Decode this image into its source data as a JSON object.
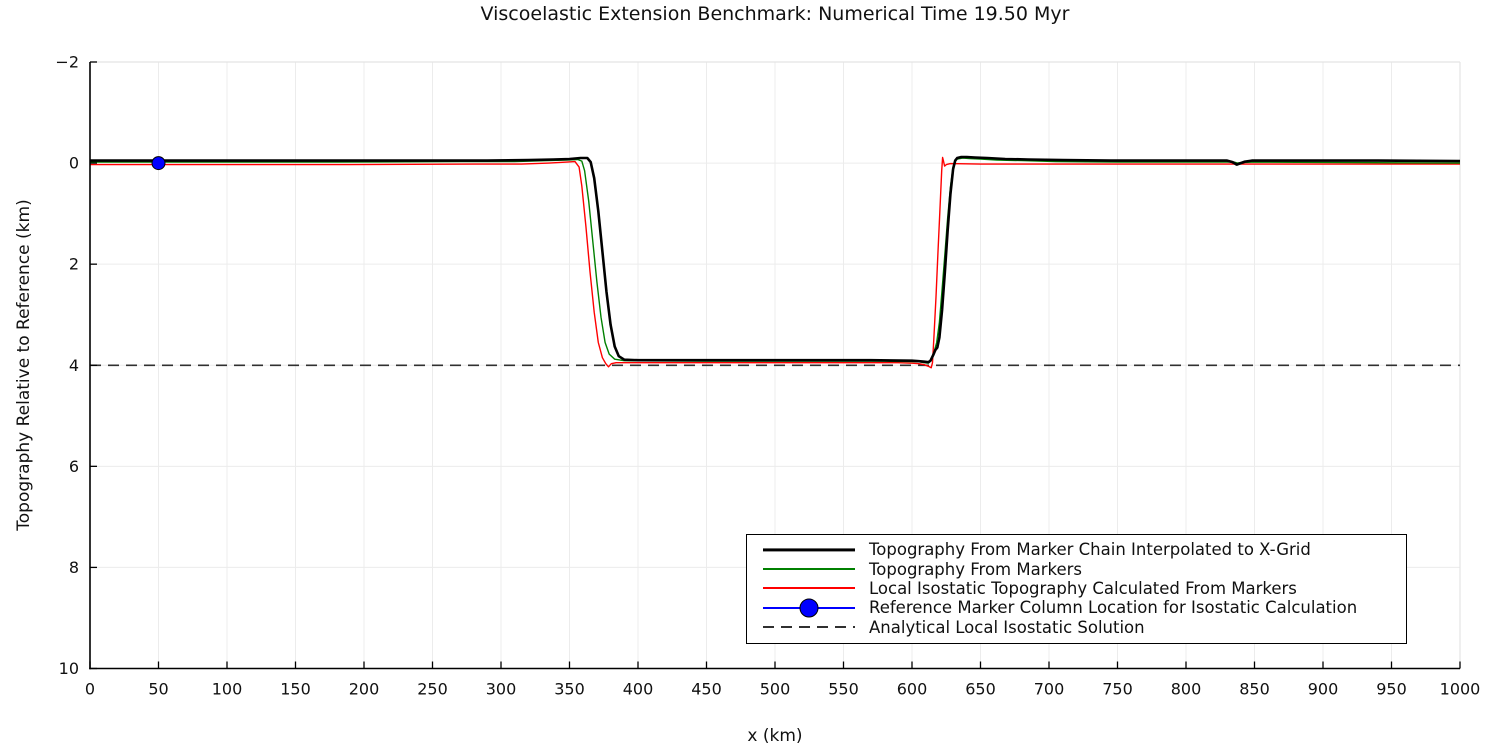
{
  "title": "Viscoelastic Extension Benchmark: Numerical Time 19.50 Myr",
  "axes": {
    "xlabel": "x (km)",
    "ylabel": "Topography Relative to Reference (km)",
    "xlim": [
      0,
      1000
    ],
    "ylim": [
      -2,
      10
    ],
    "y_inverted": true,
    "xticks": [
      0,
      50,
      100,
      150,
      200,
      250,
      300,
      350,
      400,
      450,
      500,
      550,
      600,
      650,
      700,
      750,
      800,
      850,
      900,
      950,
      1000
    ],
    "xticklabels": [
      "0",
      "50",
      "100",
      "150",
      "200",
      "250",
      "300",
      "350",
      "400",
      "450",
      "500",
      "550",
      "600",
      "650",
      "700",
      "750",
      "800",
      "850",
      "900",
      "950",
      "1000"
    ],
    "yticks": [
      -2,
      0,
      2,
      4,
      6,
      8,
      10
    ],
    "yticklabels": [
      "−2",
      "0",
      "2",
      "4",
      "6",
      "8",
      "10"
    ]
  },
  "colors": {
    "marker_chain": "#000000",
    "markers": "#008000",
    "isostatic": "#ff0000",
    "reference_marker": "#0000ff",
    "analytical": "#303030",
    "grid": "#ececec",
    "frame_light": "#e4e4e4",
    "spine": "#000000"
  },
  "chart_data": {
    "type": "line",
    "title": "Viscoelastic Extension Benchmark: Numerical Time 19.50 Myr",
    "xlabel": "x (km)",
    "ylabel": "Topography Relative to Reference (km)",
    "xlim": [
      0,
      1000
    ],
    "ylim": [
      -2,
      10
    ],
    "y_inverted": true,
    "grid": true,
    "legend_position": "lower-right-inside",
    "series": [
      {
        "name": "Topography From Marker Chain Interpolated to X-Grid",
        "color": "#000000",
        "width": 2.6,
        "style": "solid",
        "points": [
          [
            0,
            -0.05
          ],
          [
            60,
            -0.05
          ],
          [
            140,
            -0.05
          ],
          [
            220,
            -0.05
          ],
          [
            290,
            -0.05
          ],
          [
            320,
            -0.06
          ],
          [
            338,
            -0.07
          ],
          [
            350,
            -0.08
          ],
          [
            358,
            -0.1
          ],
          [
            363,
            -0.1
          ],
          [
            365.5,
            -0.02
          ],
          [
            368,
            0.3
          ],
          [
            371,
            0.95
          ],
          [
            374,
            1.75
          ],
          [
            377,
            2.55
          ],
          [
            380,
            3.2
          ],
          [
            383,
            3.63
          ],
          [
            386,
            3.82
          ],
          [
            390,
            3.89
          ],
          [
            400,
            3.9
          ],
          [
            460,
            3.9
          ],
          [
            520,
            3.9
          ],
          [
            570,
            3.9
          ],
          [
            600,
            3.91
          ],
          [
            605,
            3.92
          ],
          [
            609,
            3.93
          ],
          [
            612,
            3.94
          ],
          [
            613.5,
            3.91
          ],
          [
            615.5,
            3.8
          ],
          [
            617,
            3.7
          ],
          [
            618.5,
            3.65
          ],
          [
            620,
            3.45
          ],
          [
            622,
            2.9
          ],
          [
            624,
            2.15
          ],
          [
            626,
            1.35
          ],
          [
            628,
            0.62
          ],
          [
            630,
            0.12
          ],
          [
            631.5,
            -0.05
          ],
          [
            633,
            -0.1
          ],
          [
            636,
            -0.12
          ],
          [
            640,
            -0.12
          ],
          [
            646,
            -0.11
          ],
          [
            655,
            -0.1
          ],
          [
            668,
            -0.08
          ],
          [
            685,
            -0.07
          ],
          [
            710,
            -0.06
          ],
          [
            745,
            -0.05
          ],
          [
            790,
            -0.05
          ],
          [
            830,
            -0.05
          ],
          [
            834,
            -0.02
          ],
          [
            837,
            0.03
          ],
          [
            840,
            0.0
          ],
          [
            843,
            -0.03
          ],
          [
            848,
            -0.05
          ],
          [
            890,
            -0.05
          ],
          [
            940,
            -0.05
          ],
          [
            1000,
            -0.04
          ]
        ]
      },
      {
        "name": "Topography From Markers",
        "color": "#008000",
        "width": 1.4,
        "style": "solid",
        "points": [
          [
            0,
            -0.02
          ],
          [
            80,
            -0.02
          ],
          [
            180,
            -0.02
          ],
          [
            270,
            -0.03
          ],
          [
            310,
            -0.03
          ],
          [
            335,
            -0.05
          ],
          [
            348,
            -0.06
          ],
          [
            356,
            -0.07
          ],
          [
            359,
            -0.04
          ],
          [
            361,
            0.15
          ],
          [
            364,
            0.75
          ],
          [
            367,
            1.55
          ],
          [
            370,
            2.35
          ],
          [
            373,
            3.05
          ],
          [
            376,
            3.55
          ],
          [
            379,
            3.78
          ],
          [
            383,
            3.88
          ],
          [
            390,
            3.91
          ],
          [
            450,
            3.92
          ],
          [
            520,
            3.92
          ],
          [
            580,
            3.92
          ],
          [
            605,
            3.93
          ],
          [
            609,
            3.95
          ],
          [
            612,
            3.96
          ],
          [
            614,
            3.9
          ],
          [
            616,
            3.75
          ],
          [
            618,
            3.55
          ],
          [
            620,
            3.15
          ],
          [
            622,
            2.5
          ],
          [
            624,
            1.8
          ],
          [
            626,
            1.1
          ],
          [
            628,
            0.48
          ],
          [
            630,
            0.07
          ],
          [
            631.5,
            -0.04
          ],
          [
            633,
            -0.08
          ],
          [
            637,
            -0.1
          ],
          [
            642,
            -0.09
          ],
          [
            650,
            -0.08
          ],
          [
            662,
            -0.06
          ],
          [
            680,
            -0.05
          ],
          [
            705,
            -0.03
          ],
          [
            750,
            -0.02
          ],
          [
            800,
            -0.02
          ],
          [
            835,
            -0.02
          ],
          [
            837.5,
            0.0
          ],
          [
            840,
            -0.01
          ],
          [
            850,
            -0.02
          ],
          [
            920,
            -0.01
          ],
          [
            1000,
            0.0
          ]
        ]
      },
      {
        "name": "Local Isostatic Topography Calculated From Markers",
        "color": "#ff0000",
        "width": 1.4,
        "style": "solid",
        "points": [
          [
            0,
            0.03
          ],
          [
            90,
            0.03
          ],
          [
            190,
            0.03
          ],
          [
            280,
            0.02
          ],
          [
            315,
            0.02
          ],
          [
            335,
            0.0
          ],
          [
            348,
            -0.02
          ],
          [
            354,
            -0.03
          ],
          [
            357,
            0.08
          ],
          [
            359,
            0.45
          ],
          [
            362,
            1.25
          ],
          [
            365,
            2.15
          ],
          [
            368,
            2.95
          ],
          [
            371,
            3.55
          ],
          [
            374,
            3.85
          ],
          [
            376.5,
            3.97
          ],
          [
            378.5,
            4.03
          ],
          [
            380.5,
            3.97
          ],
          [
            384,
            3.95
          ],
          [
            400,
            3.95
          ],
          [
            470,
            3.95
          ],
          [
            540,
            3.95
          ],
          [
            590,
            3.95
          ],
          [
            600,
            3.96
          ],
          [
            605,
            3.97
          ],
          [
            609,
            3.99
          ],
          [
            612,
            4.02
          ],
          [
            614,
            4.05
          ],
          [
            615,
            3.95
          ],
          [
            616,
            3.45
          ],
          [
            617.5,
            2.65
          ],
          [
            619,
            1.75
          ],
          [
            620.5,
            0.85
          ],
          [
            621.7,
            0.15
          ],
          [
            622.3,
            -0.11
          ],
          [
            623,
            -0.04
          ],
          [
            623.8,
            0.06
          ],
          [
            625,
            0.03
          ],
          [
            628,
            0.01
          ],
          [
            650,
            0.02
          ],
          [
            720,
            0.02
          ],
          [
            800,
            0.02
          ],
          [
            880,
            0.02
          ],
          [
            1000,
            0.02
          ]
        ]
      },
      {
        "name": "Reference Marker Column Location for Isostatic Calculation",
        "color": "#0000ff",
        "width": 1.4,
        "style": "solid",
        "marker": "circle",
        "marker_size": 13,
        "points": [
          [
            50,
            0.0
          ]
        ]
      },
      {
        "name": "Analytical Local Isostatic Solution",
        "color": "#303030",
        "width": 1.6,
        "style": "dashed",
        "points": [
          [
            0,
            4.0
          ],
          [
            1000,
            4.0
          ]
        ]
      }
    ]
  }
}
